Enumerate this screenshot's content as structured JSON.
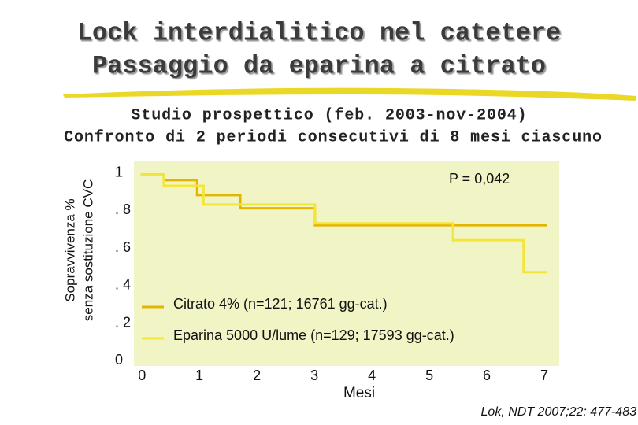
{
  "chart_data": {
    "type": "step",
    "title": [
      "Lock interdialitico nel catetere",
      "Passaggio da eparina a citrato"
    ],
    "subtitle": [
      "Studio prospettico (feb. 2003-nov-2004)",
      "Confronto di 2 periodi consecutivi di 8 mesi ciascuno"
    ],
    "y_label": [
      "Sopravvivenza %",
      "senza sostituzione CVC"
    ],
    "x_label": "Mesi",
    "annotation": "P = 0,042",
    "citation": "Lok, NDT 2007;22: 477-483",
    "xlim": [
      -0.14,
      7.26
    ],
    "xticks": [
      0,
      1,
      2,
      3,
      4,
      5,
      6,
      7
    ],
    "ylim": [
      -0.02,
      1.07
    ],
    "yticks": [
      0,
      {
        "value": 0.2,
        "label": ". 2"
      },
      {
        "value": 0.4,
        "label": ". 4"
      },
      {
        "value": 0.6,
        "label": ". 6"
      },
      {
        "value": 0.8,
        "label": ". 8"
      },
      1
    ],
    "series": [
      {
        "name": "Citrato 4% (n=121; 16761 gg-cat.)",
        "color": "#e3b500",
        "x": [
          0,
          0.38,
          0.96,
          1.71,
          3.01,
          7.03
        ],
        "values": [
          1,
          0.97,
          0.89,
          0.82,
          0.73,
          0.73
        ]
      },
      {
        "name": "Eparina 5000 U/lume (n=129; 17593 gg-cat.)",
        "color": "#f3e63a",
        "x": [
          0,
          0.38,
          1.07,
          3.01,
          5.41,
          6.64,
          7.03
        ],
        "values": [
          1,
          0.94,
          0.84,
          0.74,
          0.65,
          0.48,
          0.48
        ]
      }
    ]
  }
}
